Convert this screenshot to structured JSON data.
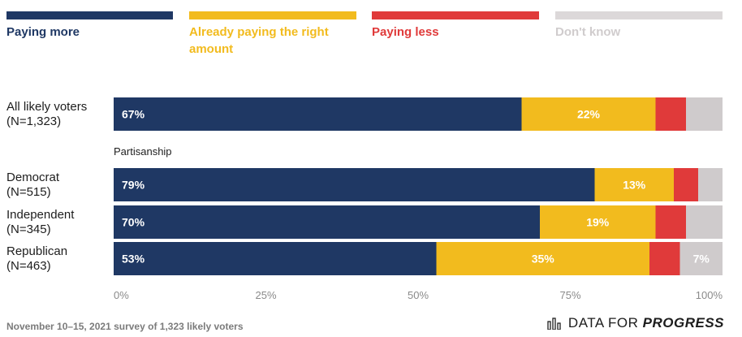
{
  "chart_data": {
    "type": "bar",
    "orientation": "horizontal",
    "stacked": true,
    "series": [
      {
        "name": "Paying more",
        "color": "#1f3864",
        "values": [
          67,
          79,
          70,
          53
        ]
      },
      {
        "name": "Already paying the right amount",
        "color": "#f2bb1e",
        "values": [
          22,
          13,
          19,
          35
        ]
      },
      {
        "name": "Paying less",
        "color": "#e03a3a",
        "values": [
          5,
          4,
          5,
          5
        ]
      },
      {
        "name": "Don't know",
        "color": "#cfcbcc",
        "values": [
          6,
          4,
          6,
          7
        ]
      }
    ],
    "categories": [
      {
        "line1": "All likely voters",
        "line2": "(N=1,323)"
      },
      {
        "line1": "Democrat",
        "line2": "(N=515)"
      },
      {
        "line1": "Independent",
        "line2": "(N=345)"
      },
      {
        "line1": "Republican",
        "line2": "(N=463)"
      }
    ],
    "shown_labels": [
      [
        "67%",
        "22%",
        "",
        ""
      ],
      [
        "79%",
        "13%",
        "",
        ""
      ],
      [
        "70%",
        "19%",
        "",
        ""
      ],
      [
        "53%",
        "35%",
        "",
        "7%"
      ]
    ],
    "group_label": "Partisanship",
    "x_ticks": [
      "0%",
      "25%",
      "50%",
      "75%",
      "100%"
    ],
    "xlim": [
      0,
      100
    ]
  },
  "legend": {
    "items": [
      {
        "label": "Paying more",
        "color": "#1f3864",
        "text_color": "#1f3864"
      },
      {
        "label": "Already paying the right amount",
        "color": "#f2bb1e",
        "text_color": "#f2bb1e"
      },
      {
        "label": "Paying less",
        "color": "#e03a3a",
        "text_color": "#e03a3a"
      },
      {
        "label": "Don't know",
        "color": "#dcd8d9",
        "text_color": "#d0cccd"
      }
    ]
  },
  "footer": {
    "note": "November 10–15, 2021 survey of 1,323 likely voters",
    "brand_plain": "DATA FOR ",
    "brand_bold": "PROGRESS"
  }
}
